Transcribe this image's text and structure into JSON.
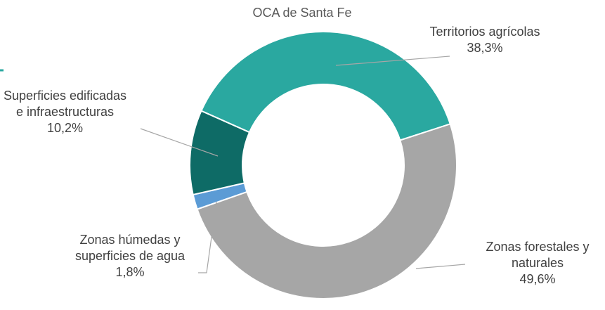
{
  "chart_data": {
    "type": "donut",
    "title": "OCA de Santa Fe",
    "categories": [
      "Territorios agrícolas",
      "Zonas forestales y naturales",
      "Zonas húmedas y superficies de agua",
      "Superficies edificadas e infraestructuras"
    ],
    "values": [
      38.3,
      49.6,
      1.8,
      10.2
    ],
    "value_labels": [
      "38,3%",
      "49,6%",
      "1,8%",
      "10,2%"
    ],
    "colors": [
      "#2aa8a0",
      "#a6a6a6",
      "#5b9bd5",
      "#0e6b66"
    ]
  }
}
